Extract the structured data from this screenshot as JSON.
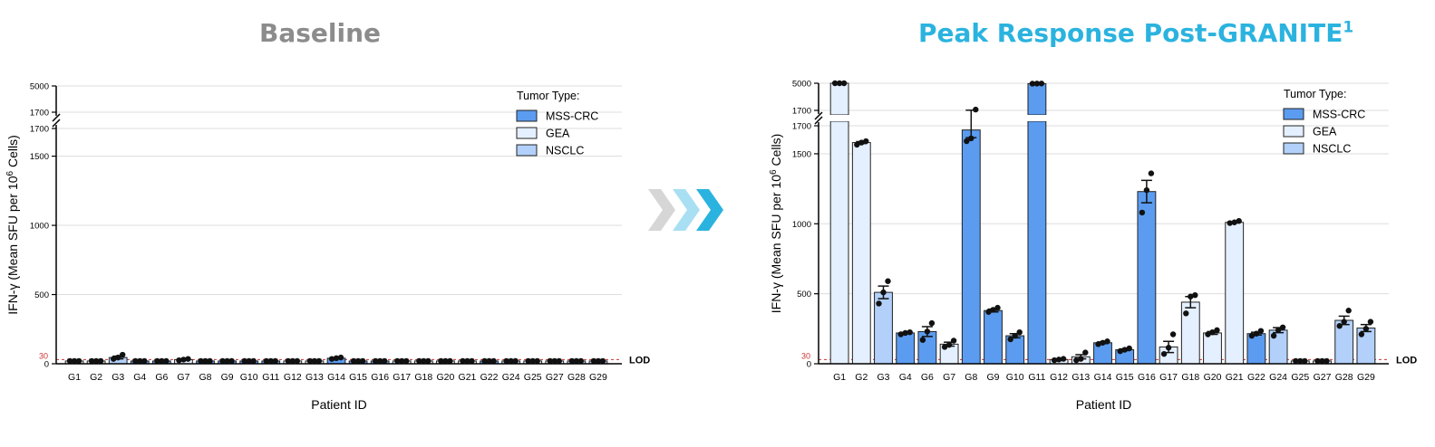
{
  "titles": {
    "baseline": "Baseline",
    "peak": "Peak Response Post-GRANITE",
    "peak_superscript": "1"
  },
  "colors": {
    "MSS-CRC": "#5b9cf0",
    "GEA": "#e4efff",
    "NSCLC": "#b2d0fa",
    "lod_line": "#cc3333",
    "lod_tick": "#cc3333",
    "arrow_1": "#d6d6d6",
    "arrow_2": "#a9dff2",
    "arrow_3": "#2bb3df"
  },
  "chart_data": [
    {
      "type": "bar",
      "title": "Baseline",
      "xlabel": "Patient ID",
      "ylabel": "IFN-γ (Mean SFU per 10^6 Cells)",
      "ylabel_parts": {
        "base": "IFN-γ (Mean SFU per 10",
        "sup": "6",
        "tail": " Cells)"
      },
      "y_axis_broken": true,
      "ylim_lower": [
        0,
        1700
      ],
      "ylim_upper": [
        1700,
        5000
      ],
      "yticks_lower": [
        "0",
        "500",
        "1000",
        "1500",
        "1700"
      ],
      "yticks_upper": [
        "1700",
        "5000"
      ],
      "lod": {
        "value": 30,
        "label": "LOD",
        "tick_label": "30"
      },
      "legend": {
        "title": "Tumor Type:",
        "placement": "top-right",
        "entries": [
          "MSS-CRC",
          "GEA",
          "NSCLC"
        ]
      },
      "categories": [
        "G1",
        "G2",
        "G3",
        "G4",
        "G6",
        "G7",
        "G8",
        "G9",
        "G10",
        "G11",
        "G12",
        "G13",
        "G14",
        "G15",
        "G16",
        "G17",
        "G18",
        "G20",
        "G21",
        "G22",
        "G24",
        "G25",
        "G27",
        "G28",
        "G29"
      ],
      "tumor_types": [
        "GEA",
        "GEA",
        "NSCLC",
        "MSS-CRC",
        "MSS-CRC",
        "GEA",
        "MSS-CRC",
        "MSS-CRC",
        "MSS-CRC",
        "MSS-CRC",
        "GEA",
        "GEA",
        "MSS-CRC",
        "MSS-CRC",
        "MSS-CRC",
        "GEA",
        "GEA",
        "GEA",
        "GEA",
        "MSS-CRC",
        "NSCLC",
        "GEA",
        "GEA",
        "NSCLC",
        "NSCLC"
      ],
      "values": [
        20,
        20,
        45,
        20,
        20,
        30,
        20,
        20,
        20,
        20,
        20,
        20,
        40,
        20,
        20,
        20,
        20,
        20,
        20,
        20,
        20,
        20,
        20,
        20,
        20
      ],
      "points": [
        [
          20,
          20,
          20
        ],
        [
          20,
          20,
          20
        ],
        [
          35,
          45,
          65
        ],
        [
          20,
          20,
          20
        ],
        [
          20,
          20,
          20
        ],
        [
          25,
          30,
          35
        ],
        [
          20,
          20,
          20
        ],
        [
          20,
          20,
          20
        ],
        [
          20,
          20,
          20
        ],
        [
          20,
          20,
          20
        ],
        [
          20,
          20,
          20
        ],
        [
          20,
          20,
          20
        ],
        [
          35,
          40,
          45
        ],
        [
          20,
          20,
          20
        ],
        [
          20,
          20,
          20
        ],
        [
          20,
          20,
          20
        ],
        [
          20,
          20,
          20
        ],
        [
          20,
          20,
          20
        ],
        [
          20,
          20,
          20
        ],
        [
          20,
          20,
          20
        ],
        [
          20,
          20,
          20
        ],
        [
          20,
          20,
          20
        ],
        [
          20,
          20,
          20
        ],
        [
          20,
          20,
          20
        ],
        [
          20,
          20,
          20
        ]
      ],
      "sem": [
        0,
        0,
        10,
        0,
        0,
        3,
        0,
        0,
        0,
        0,
        0,
        0,
        3,
        0,
        0,
        0,
        0,
        0,
        0,
        0,
        0,
        0,
        0,
        0,
        0
      ]
    },
    {
      "type": "bar",
      "title": "Peak Response Post-GRANITE",
      "xlabel": "Patient ID",
      "ylabel": "IFN-γ (Mean SFU per 10^6 Cells)",
      "ylabel_parts": {
        "base": "IFN-γ (Mean SFU per 10",
        "sup": "6",
        "tail": " Cells)"
      },
      "y_axis_broken": true,
      "ylim_lower": [
        0,
        1700
      ],
      "ylim_upper": [
        1700,
        5000
      ],
      "yticks_lower": [
        "0",
        "500",
        "1000",
        "1500",
        "1700"
      ],
      "yticks_upper": [
        "1700",
        "5000"
      ],
      "lod": {
        "value": 30,
        "label": "LOD",
        "tick_label": "30"
      },
      "legend": {
        "title": "Tumor Type:",
        "placement": "top-right",
        "entries": [
          "MSS-CRC",
          "GEA",
          "NSCLC"
        ]
      },
      "categories": [
        "G1",
        "G2",
        "G3",
        "G4",
        "G6",
        "G7",
        "G8",
        "G9",
        "G10",
        "G11",
        "G12",
        "G13",
        "G14",
        "G15",
        "G16",
        "G17",
        "G18",
        "G20",
        "G21",
        "G22",
        "G24",
        "G25",
        "G27",
        "G28",
        "G29"
      ],
      "tumor_types": [
        "GEA",
        "GEA",
        "NSCLC",
        "MSS-CRC",
        "MSS-CRC",
        "GEA",
        "MSS-CRC",
        "MSS-CRC",
        "MSS-CRC",
        "MSS-CRC",
        "GEA",
        "GEA",
        "MSS-CRC",
        "MSS-CRC",
        "MSS-CRC",
        "GEA",
        "GEA",
        "GEA",
        "GEA",
        "MSS-CRC",
        "NSCLC",
        "GEA",
        "GEA",
        "NSCLC",
        "NSCLC"
      ],
      "values": [
        5000,
        1580,
        510,
        220,
        230,
        140,
        1670,
        380,
        200,
        4950,
        30,
        50,
        150,
        100,
        1230,
        120,
        440,
        220,
        1010,
        215,
        240,
        20,
        20,
        310,
        255
      ],
      "points": [
        [
          5000,
          5000,
          5000
        ],
        [
          1565,
          1580,
          1590
        ],
        [
          430,
          510,
          590
        ],
        [
          210,
          220,
          225
        ],
        [
          170,
          230,
          290
        ],
        [
          120,
          135,
          165
        ],
        [
          1590,
          1610,
          1800
        ],
        [
          370,
          385,
          400
        ],
        [
          175,
          200,
          225
        ],
        [
          4950,
          4960,
          4970
        ],
        [
          25,
          30,
          35
        ],
        [
          25,
          35,
          80
        ],
        [
          140,
          150,
          160
        ],
        [
          90,
          100,
          110
        ],
        [
          1080,
          1240,
          1360
        ],
        [
          70,
          115,
          210
        ],
        [
          360,
          480,
          490
        ],
        [
          210,
          225,
          240
        ],
        [
          1005,
          1010,
          1020
        ],
        [
          200,
          215,
          235
        ],
        [
          200,
          240,
          260
        ],
        [
          20,
          20,
          20
        ],
        [
          20,
          20,
          20
        ],
        [
          270,
          300,
          380
        ],
        [
          210,
          250,
          300
        ]
      ],
      "sem": [
        0,
        7,
        45,
        5,
        35,
        14,
        55,
        10,
        15,
        0,
        3,
        15,
        6,
        6,
        80,
        40,
        40,
        10,
        4,
        10,
        18,
        0,
        0,
        30,
        25
      ]
    }
  ]
}
